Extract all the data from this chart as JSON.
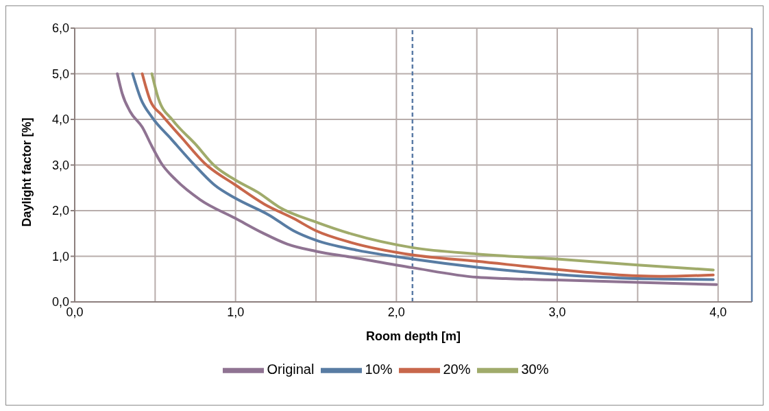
{
  "chart_data": {
    "type": "line",
    "xlabel": "Room depth [m]",
    "ylabel": "Daylight factor [%]",
    "xlim": [
      0,
      4.21
    ],
    "ylim": [
      0,
      6
    ],
    "xticks": [
      {
        "value": 0,
        "label": "0,0"
      },
      {
        "value": 0.5,
        "label": null
      },
      {
        "value": 1,
        "label": "1,0"
      },
      {
        "value": 1.5,
        "label": null
      },
      {
        "value": 2,
        "label": "2,0"
      },
      {
        "value": 2.5,
        "label": null
      },
      {
        "value": 3,
        "label": "3,0"
      },
      {
        "value": 3.5,
        "label": null
      },
      {
        "value": 4,
        "label": "4,0"
      }
    ],
    "yticks": [
      {
        "value": 0,
        "label": "0,0"
      },
      {
        "value": 1,
        "label": "1,0"
      },
      {
        "value": 2,
        "label": "2,0"
      },
      {
        "value": 3,
        "label": "3,0"
      },
      {
        "value": 4,
        "label": "4,0"
      },
      {
        "value": 5,
        "label": "5,0"
      },
      {
        "value": 6,
        "label": "6,0"
      }
    ],
    "grid": true,
    "legend": "bottom",
    "marker": "none",
    "line_style": "solid",
    "ref_lines": [
      {
        "axis": "x",
        "value": 2.1,
        "label": null,
        "color": "#5a7ba6",
        "line_style": "dashed"
      },
      {
        "axis": "x",
        "value": 4.21,
        "label": null,
        "color": "#5a7ba6",
        "line_style": "solid"
      }
    ],
    "series": [
      {
        "name": "Original",
        "color": "#8f7392",
        "x": [
          0.265,
          0.295,
          0.345,
          0.42,
          0.48,
          0.54,
          0.63,
          0.78,
          1.0,
          1.17,
          1.32,
          1.5,
          1.72,
          2.1,
          2.5,
          2.68,
          3.0,
          3.5,
          3.99
        ],
        "values": [
          5.0,
          4.57,
          4.17,
          3.83,
          3.41,
          3.03,
          2.67,
          2.24,
          1.83,
          1.51,
          1.27,
          1.11,
          0.98,
          0.75,
          0.54,
          0.51,
          0.48,
          0.43,
          0.38
        ]
      },
      {
        "name": "10%",
        "color": "#587ca3",
        "x": [
          0.36,
          0.41,
          0.48,
          0.6,
          0.75,
          0.87,
          1.0,
          1.21,
          1.36,
          1.5,
          1.76,
          2.1,
          2.5,
          3.0,
          3.5,
          3.97
        ],
        "values": [
          5.0,
          4.46,
          4.05,
          3.57,
          2.98,
          2.56,
          2.27,
          1.9,
          1.56,
          1.35,
          1.13,
          0.94,
          0.76,
          0.6,
          0.51,
          0.49
        ]
      },
      {
        "name": "20%",
        "color": "#c8674b",
        "x": [
          0.42,
          0.47,
          0.54,
          0.66,
          0.81,
          1.0,
          1.18,
          1.36,
          1.5,
          1.72,
          2.1,
          2.5,
          3.0,
          3.5,
          3.64,
          3.97
        ],
        "values": [
          5.0,
          4.41,
          4.1,
          3.62,
          3.03,
          2.56,
          2.14,
          1.83,
          1.56,
          1.3,
          1.03,
          0.89,
          0.71,
          0.57,
          0.56,
          0.59
        ]
      },
      {
        "name": "30%",
        "color": "#a0ab6b",
        "x": [
          0.48,
          0.52,
          0.61,
          0.75,
          0.87,
          1.0,
          1.14,
          1.27,
          1.5,
          1.72,
          2.1,
          2.5,
          3.0,
          3.5,
          3.97
        ],
        "values": [
          5.0,
          4.46,
          3.98,
          3.46,
          2.98,
          2.67,
          2.4,
          2.08,
          1.75,
          1.49,
          1.19,
          1.05,
          0.94,
          0.81,
          0.7
        ]
      }
    ]
  }
}
